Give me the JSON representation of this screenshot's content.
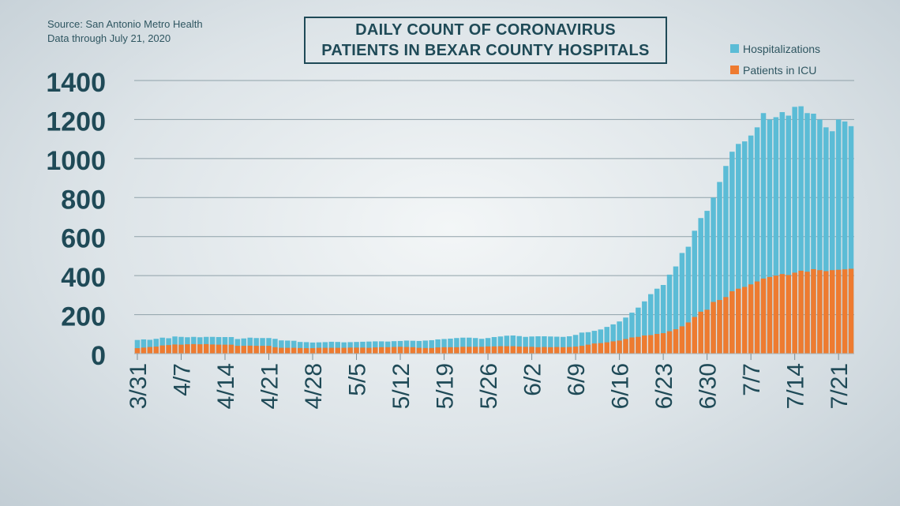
{
  "source": {
    "line1": "Source: San Antonio Metro Health",
    "line2": "Data through July 21, 2020"
  },
  "title": {
    "line1": "DAILY COUNT OF CORONAVIRUS",
    "line2": "PATIENTS IN BEXAR COUNTY HOSPITALS"
  },
  "colors": {
    "hospitalizations": "#5bbcd6",
    "icu": "#ee7b30",
    "axis_text": "#1f4a57",
    "grid": "#8fa1a9"
  },
  "chart_data": {
    "type": "bar",
    "stacked": "overlay",
    "ylim": [
      0,
      1400
    ],
    "yticks": [
      0,
      200,
      400,
      600,
      800,
      1000,
      1200,
      1400
    ],
    "grid": true,
    "legend_position": "top-right",
    "x_tick_labels": [
      "3/31",
      "4/7",
      "4/14",
      "4/21",
      "4/28",
      "5/5",
      "5/12",
      "5/19",
      "5/26",
      "6/2",
      "6/9",
      "6/16",
      "6/23",
      "6/30",
      "7/7",
      "7/14",
      "7/21"
    ],
    "x_tick_day_index": [
      0,
      7,
      14,
      21,
      28,
      35,
      42,
      49,
      56,
      63,
      70,
      77,
      84,
      91,
      98,
      105,
      112
    ],
    "series": [
      {
        "name": "Hospitalizations",
        "values": [
          70,
          73,
          71,
          76,
          82,
          79,
          88,
          86,
          84,
          86,
          84,
          86,
          86,
          85,
          85,
          85,
          75,
          78,
          82,
          80,
          80,
          80,
          76,
          68,
          67,
          66,
          60,
          59,
          57,
          58,
          59,
          61,
          60,
          58,
          59,
          60,
          61,
          62,
          63,
          63,
          62,
          64,
          65,
          67,
          66,
          65,
          67,
          69,
          73,
          75,
          77,
          80,
          82,
          82,
          80,
          76,
          80,
          85,
          88,
          92,
          93,
          90,
          86,
          88,
          89,
          89,
          88,
          87,
          86,
          89,
          96,
          108,
          110,
          117,
          124,
          137,
          150,
          165,
          185,
          210,
          236,
          268,
          305,
          333,
          352,
          405,
          447,
          516,
          548,
          630,
          695,
          732,
          800,
          880,
          962,
          1035,
          1075,
          1088,
          1118,
          1160,
          1233,
          1200,
          1212,
          1238,
          1220,
          1265,
          1268,
          1233,
          1230,
          1200,
          1160,
          1140,
          1200,
          1190,
          1166
        ]
      },
      {
        "name": "Patients in ICU",
        "values": [
          28,
          31,
          34,
          36,
          42,
          44,
          47,
          46,
          48,
          49,
          48,
          49,
          47,
          46,
          46,
          46,
          40,
          40,
          41,
          40,
          40,
          40,
          33,
          30,
          30,
          30,
          29,
          28,
          28,
          30,
          30,
          30,
          30,
          30,
          31,
          31,
          31,
          30,
          32,
          33,
          33,
          34,
          35,
          34,
          33,
          30,
          29,
          29,
          32,
          33,
          33,
          33,
          35,
          35,
          35,
          35,
          37,
          37,
          38,
          38,
          38,
          36,
          35,
          35,
          33,
          34,
          33,
          34,
          33,
          34,
          36,
          40,
          46,
          52,
          54,
          58,
          63,
          67,
          75,
          83,
          86,
          93,
          95,
          101,
          105,
          115,
          125,
          140,
          160,
          188,
          215,
          225,
          265,
          275,
          290,
          320,
          333,
          342,
          355,
          370,
          385,
          393,
          400,
          408,
          403,
          415,
          425,
          420,
          433,
          428,
          423,
          428,
          430,
          432,
          435
        ]
      }
    ]
  }
}
